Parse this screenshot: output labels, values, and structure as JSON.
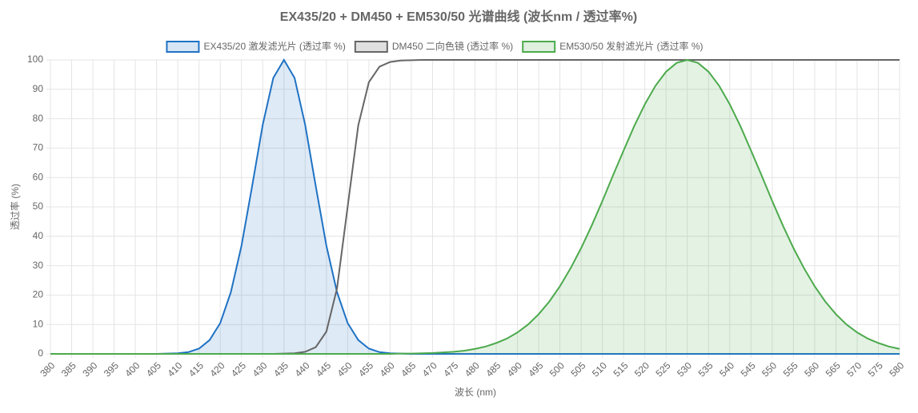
{
  "chart_data": {
    "type": "line",
    "title": "EX435/20 + DM450 + EM530/50 光谱曲线 (波长nm / 透过率%)",
    "x_label": "波长 (nm)",
    "y_label": "透过率 (%)",
    "x": [
      380,
      382.5,
      385,
      387.5,
      390,
      392.5,
      395,
      397.5,
      400,
      402.5,
      405,
      407.5,
      410,
      412.5,
      415,
      417.5,
      420,
      422.5,
      425,
      427.5,
      430,
      432.5,
      435,
      437.5,
      440,
      442.5,
      445,
      447.5,
      450,
      452.5,
      455,
      457.5,
      460,
      462.5,
      465,
      467.5,
      470,
      472.5,
      475,
      477.5,
      480,
      482.5,
      485,
      487.5,
      490,
      492.5,
      495,
      497.5,
      500,
      502.5,
      505,
      507.5,
      510,
      512.5,
      515,
      517.5,
      520,
      522.5,
      525,
      527.5,
      530,
      532.5,
      535,
      537.5,
      540,
      542.5,
      545,
      547.5,
      550,
      552.5,
      555,
      557.5,
      560,
      562.5,
      565,
      567.5,
      570,
      572.5,
      575,
      577.5,
      580
    ],
    "series": [
      {
        "name": "EX435/20 激发滤光片 (透过率 %)",
        "color": "#1f72c4",
        "fill": true,
        "values": [
          0,
          0,
          0,
          0,
          0,
          0,
          0,
          0,
          0,
          0,
          0,
          0.1,
          0.2,
          0.6,
          1.8,
          4.7,
          10.5,
          21.0,
          36.8,
          57.0,
          77.9,
          93.9,
          100,
          93.9,
          77.9,
          57.0,
          36.8,
          21.0,
          10.5,
          4.7,
          1.8,
          0.6,
          0.2,
          0.1,
          0,
          0,
          0,
          0,
          0,
          0,
          0,
          0,
          0,
          0,
          0,
          0,
          0,
          0,
          0,
          0,
          0,
          0,
          0,
          0,
          0,
          0,
          0,
          0,
          0,
          0,
          0,
          0,
          0,
          0,
          0,
          0,
          0,
          0,
          0,
          0,
          0,
          0,
          0,
          0,
          0,
          0,
          0,
          0,
          0,
          0,
          0
        ]
      },
      {
        "name": "DM450 二向色镜 (透过率 %)",
        "color": "#666666",
        "fill": false,
        "values": [
          0,
          0,
          0,
          0,
          0,
          0,
          0,
          0,
          0,
          0,
          0,
          0,
          0,
          0,
          0,
          0,
          0,
          0,
          0,
          0,
          0,
          0,
          0.1,
          0.2,
          0.7,
          2.3,
          7.6,
          22.3,
          50,
          77.7,
          92.4,
          97.7,
          99.3,
          99.8,
          99.9,
          100,
          100,
          100,
          100,
          100,
          100,
          100,
          100,
          100,
          100,
          100,
          100,
          100,
          100,
          100,
          100,
          100,
          100,
          100,
          100,
          100,
          100,
          100,
          100,
          100,
          100,
          100,
          100,
          100,
          100,
          100,
          100,
          100,
          100,
          100,
          100,
          100,
          100,
          100,
          100,
          100,
          100,
          100,
          100,
          100,
          100
        ]
      },
      {
        "name": "EM530/50 发射滤光片 (透过率 %)",
        "color": "#4caa4c",
        "fill": true,
        "values": [
          0,
          0,
          0,
          0,
          0,
          0,
          0,
          0,
          0,
          0,
          0,
          0,
          0,
          0,
          0,
          0,
          0,
          0,
          0,
          0,
          0,
          0,
          0,
          0,
          0,
          0,
          0,
          0,
          0,
          0,
          0,
          0,
          0,
          0.1,
          0.1,
          0.2,
          0.3,
          0.5,
          0.7,
          1.1,
          1.7,
          2.5,
          3.7,
          5.2,
          7.3,
          10.0,
          13.5,
          17.8,
          23.0,
          29.1,
          36.0,
          43.7,
          52.0,
          60.7,
          69.2,
          77.5,
          84.9,
          91.2,
          96.0,
          99.0,
          100,
          99.0,
          96.0,
          91.2,
          84.9,
          77.5,
          69.2,
          60.7,
          52.0,
          43.7,
          36.0,
          29.1,
          23.0,
          17.8,
          13.5,
          10.0,
          7.3,
          5.2,
          3.7,
          2.5,
          1.7
        ]
      }
    ],
    "xlim": [
      380,
      580
    ],
    "xticks": [
      380,
      385,
      390,
      395,
      400,
      405,
      410,
      415,
      420,
      425,
      430,
      435,
      440,
      445,
      450,
      455,
      460,
      465,
      470,
      475,
      480,
      485,
      490,
      495,
      500,
      505,
      510,
      515,
      520,
      525,
      530,
      535,
      540,
      545,
      550,
      555,
      560,
      565,
      570,
      575,
      580
    ],
    "ylim": [
      0,
      100
    ],
    "yticks": [
      0,
      10,
      20,
      30,
      40,
      50,
      60,
      70,
      80,
      90,
      100
    ],
    "grid": true,
    "legend": "top"
  }
}
